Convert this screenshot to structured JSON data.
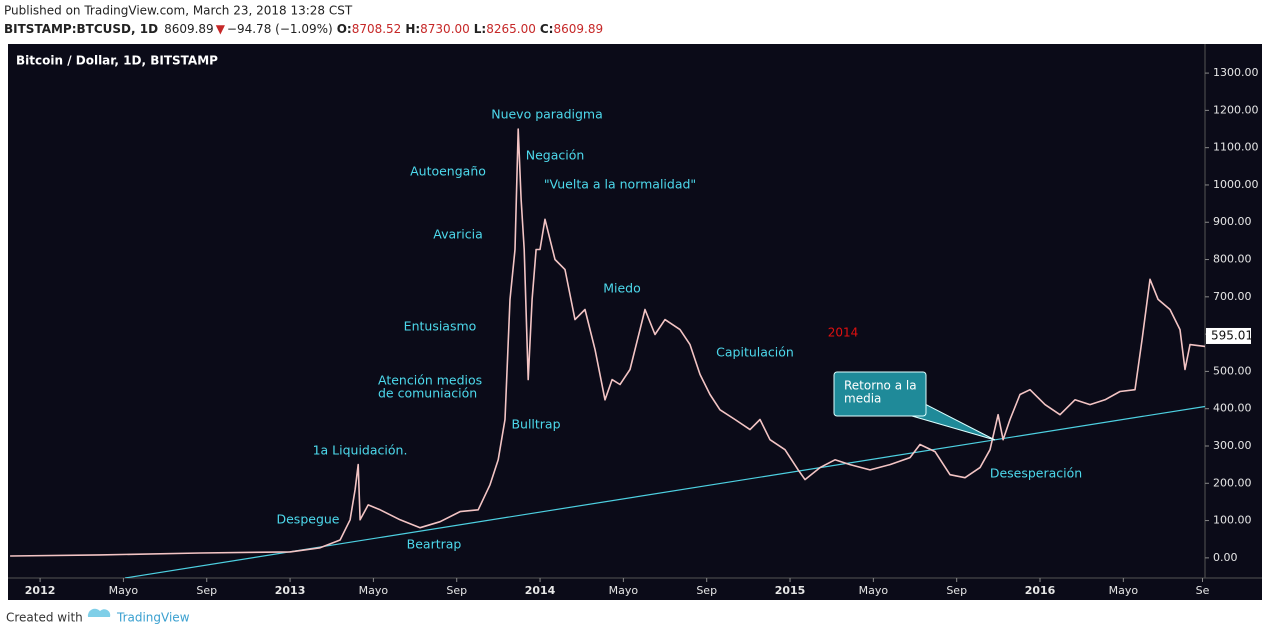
{
  "header": {
    "published": "Published on TradingView.com, March 23, 2018 13:28 CST",
    "symbol": "BITSTAMP:BTCUSD, 1D",
    "last": "8609.89",
    "arrow": "▼",
    "change": "−94.78 (−1.09%)",
    "o_label": "O:",
    "o": "8708.52",
    "h_label": "H:",
    "h": "8730.00",
    "l_label": "L:",
    "l": "8265.00",
    "c_label": "C:",
    "c": "8609.89"
  },
  "footer": {
    "created": "Created with",
    "brand": "TradingView"
  },
  "chart_data": {
    "type": "line",
    "title": "Bitcoin / Dollar, 1D, BITSTAMP",
    "x": [
      -1.44,
      2.88,
      7.68,
      12,
      13.44,
      14.4,
      14.88,
      15.12,
      15.27,
      15.36,
      15.75,
      16.32,
      17.28,
      18.24,
      19.2,
      20.16,
      21.03,
      21.6,
      21.99,
      22.32,
      22.56,
      22.8,
      22.95,
      23.09,
      23.24,
      23.43,
      23.62,
      23.81,
      24,
      24.24,
      24.72,
      25.2,
      25.68,
      26.16,
      26.64,
      27.12,
      27.46,
      27.84,
      28.32,
      28.8,
      29.04,
      29.52,
      30,
      30.72,
      31.2,
      31.68,
      32.16,
      32.64,
      33.36,
      34.08,
      34.56,
      35.04,
      35.76,
      36.39,
      36.72,
      37.44,
      38.16,
      38.88,
      39.84,
      40.8,
      41.76,
      42.24,
      42.96,
      43.68,
      44.4,
      45.12,
      45.6,
      45.99,
      46.23,
      46.56,
      47.04,
      47.52,
      48.24,
      48.96,
      49.68,
      50.4,
      51.12,
      51.84,
      52.56,
      52.9,
      53.28,
      53.67,
      54.24,
      54.72,
      54.96,
      55.2,
      55.92
    ],
    "series": [
      {
        "name": "BTCUSD",
        "color": "#f3c4c4",
        "values": [
          5,
          8,
          13,
          16,
          27,
          48,
          102,
          183,
          250,
          102,
          142,
          129,
          102,
          81,
          97,
          124,
          129,
          196,
          263,
          371,
          693,
          827,
          1150,
          962,
          827,
          478,
          693,
          827,
          827,
          908,
          800,
          773,
          639,
          666,
          559,
          424,
          478,
          465,
          505,
          612,
          666,
          599,
          639,
          612,
          572,
          492,
          438,
          397,
          371,
          344,
          371,
          317,
          290,
          236,
          210,
          242,
          263,
          250,
          236,
          250,
          269,
          304,
          285,
          223,
          215,
          242,
          290,
          384,
          317,
          371,
          438,
          451,
          411,
          384,
          424,
          411,
          424,
          446,
          451,
          586,
          747,
          693,
          666,
          612,
          505,
          572,
          567
        ]
      }
    ],
    "trendline": {
      "x": [
        4.08,
        55.92
      ],
      "values": [
        -54,
        406
      ],
      "color": "#4dd0e1"
    },
    "last_price": 595.01,
    "xlim": [
      -1.54,
      55.92
    ],
    "xticks": [
      {
        "value": 0,
        "label": "2012"
      },
      {
        "value": 4,
        "label": "Mayo"
      },
      {
        "value": 8,
        "label": "Sep"
      },
      {
        "value": 12,
        "label": "2013"
      },
      {
        "value": 16,
        "label": "Mayo"
      },
      {
        "value": 20,
        "label": "Sep"
      },
      {
        "value": 24,
        "label": "2014"
      },
      {
        "value": 28,
        "label": "Mayo"
      },
      {
        "value": 32,
        "label": "Sep"
      },
      {
        "value": 36,
        "label": "2015"
      },
      {
        "value": 40,
        "label": "Mayo"
      },
      {
        "value": 44,
        "label": "Sep"
      },
      {
        "value": 48,
        "label": "2016"
      },
      {
        "value": 52,
        "label": "Mayo"
      },
      {
        "value": 55.8,
        "label": "Se"
      }
    ],
    "ylim": [
      -54,
      1378
    ],
    "yticks": [
      {
        "value": 0,
        "label": "0.00"
      },
      {
        "value": 100,
        "label": "100.00"
      },
      {
        "value": 200,
        "label": "200.00"
      },
      {
        "value": 300,
        "label": "300.00"
      },
      {
        "value": 400,
        "label": "400.00"
      },
      {
        "value": 500,
        "label": "500.00"
      },
      {
        "value": 600,
        "label": "600.00"
      },
      {
        "value": 700,
        "label": "700.00"
      },
      {
        "value": 800,
        "label": "800.00"
      },
      {
        "value": 900,
        "label": "900.00"
      },
      {
        "value": 1000,
        "label": "1000.00"
      },
      {
        "value": 1100,
        "label": "1100.00"
      },
      {
        "value": 1200,
        "label": "1200.00"
      },
      {
        "value": 1300,
        "label": "1300.00"
      }
    ],
    "annotations": [
      "Nuevo paradigma",
      "Negación",
      "\"Vuelta a la normalidad\"",
      "Autoengaño",
      "Avaricia",
      "Miedo",
      "Entusiasmo",
      "Capitulación",
      "Atención medios",
      "de comuniación",
      "Bulltrap",
      "1a Liquidación.",
      "Despegue",
      "Beartrap",
      "Desesperación"
    ],
    "year_note": "2014",
    "callout": [
      "Retorno a la",
      "media"
    ]
  }
}
